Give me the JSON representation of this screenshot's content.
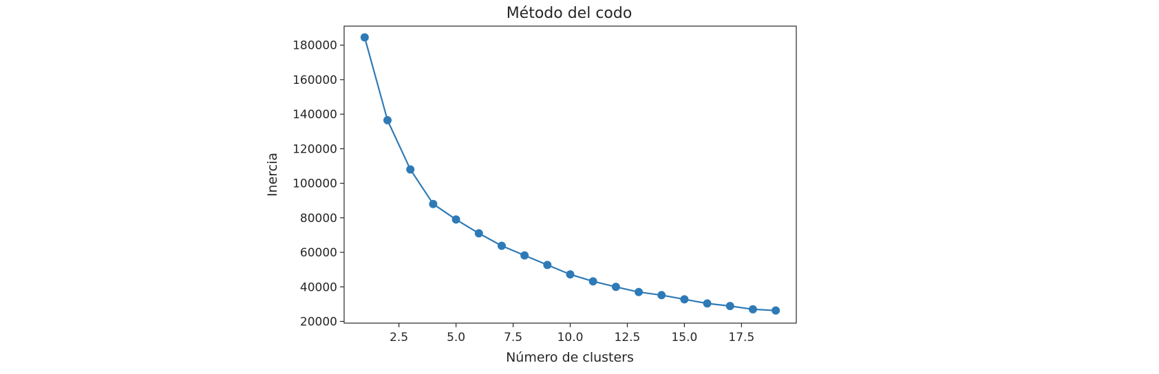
{
  "chart_data": {
    "type": "line",
    "title": "Método del codo",
    "xlabel": "Número de clusters",
    "ylabel": "Inercia",
    "xlim": [
      0.1,
      19.9
    ],
    "ylim": [
      19000,
      191000
    ],
    "xticks": [
      2.5,
      5.0,
      7.5,
      10.0,
      12.5,
      15.0,
      17.5
    ],
    "xtick_labels": [
      "2.5",
      "5.0",
      "7.5",
      "10.0",
      "12.5",
      "15.0",
      "17.5"
    ],
    "yticks": [
      20000,
      40000,
      60000,
      80000,
      100000,
      120000,
      140000,
      160000,
      180000
    ],
    "ytick_labels": [
      "20000",
      "40000",
      "60000",
      "80000",
      "100000",
      "120000",
      "140000",
      "160000",
      "180000"
    ],
    "grid": false,
    "color": "#2e7ab7",
    "series": [
      {
        "marker": "circle",
        "x": [
          1,
          2,
          3,
          4,
          5,
          6,
          7,
          8,
          9,
          10,
          11,
          12,
          13,
          14,
          15,
          16,
          17,
          18,
          19
        ],
        "y": [
          184500,
          136500,
          108000,
          88000,
          79000,
          71000,
          63800,
          58200,
          52700,
          47200,
          43200,
          40000,
          37000,
          35200,
          32800,
          30400,
          28900,
          27000,
          26300
        ]
      }
    ]
  }
}
